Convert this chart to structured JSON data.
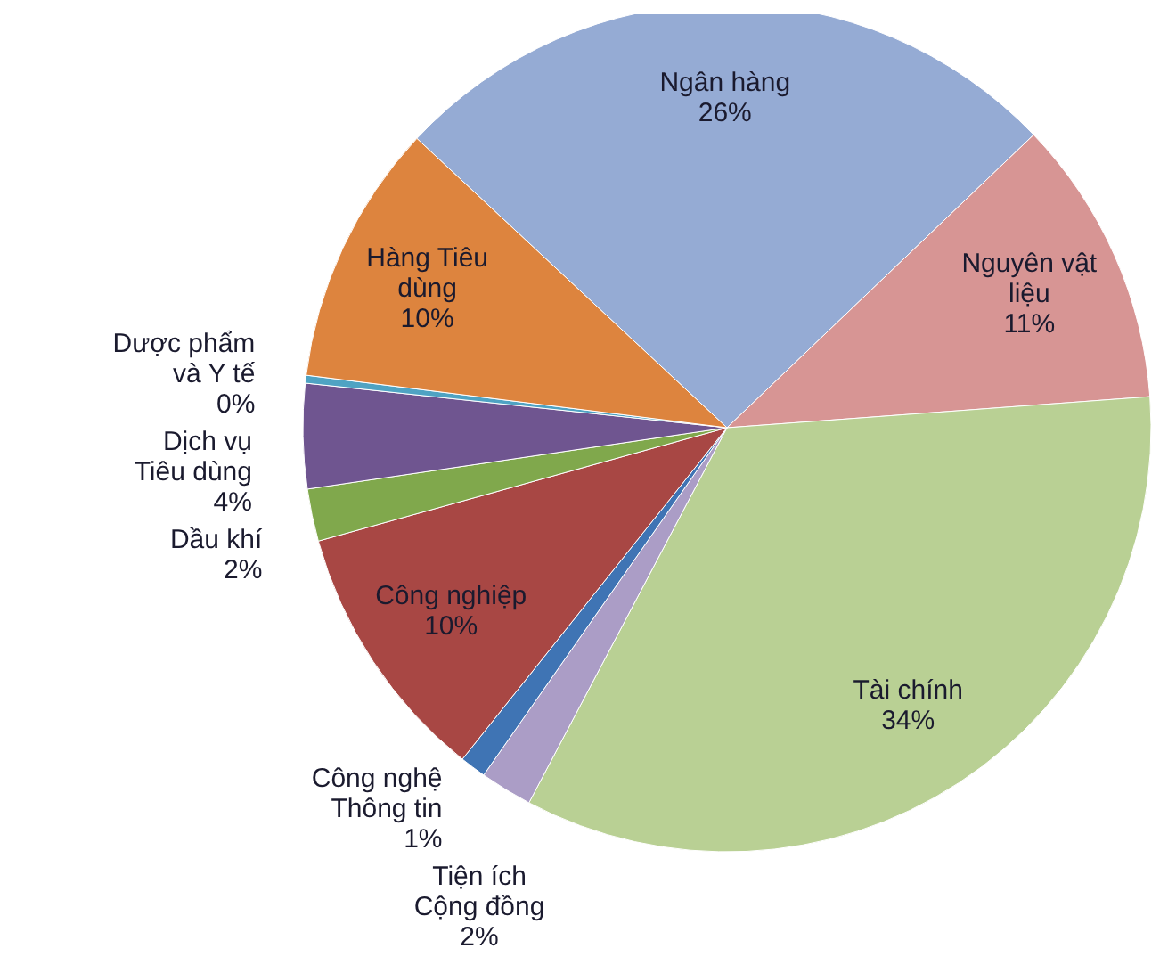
{
  "chart_data": {
    "type": "pie",
    "categories": [
      "Ngân hàng",
      "Nguyên vật liệu",
      "Tài chính",
      "Tiện ích Cộng đồng",
      "Công nghệ Thông tin",
      "Công nghiệp",
      "Dầu khí",
      "Dịch vụ Tiêu dùng",
      "Dược phẩm và Y tế",
      "Hàng Tiêu dùng"
    ],
    "values": [
      26,
      11,
      34,
      2,
      1,
      10,
      2,
      4,
      0.3,
      10
    ],
    "value_labels": [
      "26%",
      "11%",
      "34%",
      "2%",
      "1%",
      "10%",
      "2%",
      "4%",
      "0%",
      "10%"
    ],
    "colors": [
      "#95abd4",
      "#d79594",
      "#b9d094",
      "#ab9dc6",
      "#3f74b4",
      "#a84744",
      "#80a84c",
      "#6f5590",
      "#4fa3c3",
      "#dd843e"
    ]
  }
}
